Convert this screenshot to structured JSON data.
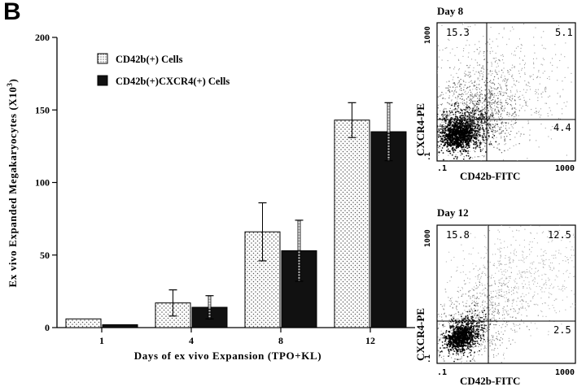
{
  "panel_letter": "B",
  "chart_data": [
    {
      "type": "bar",
      "title": "",
      "xlabel": "Days of ex vivo Expansion (TPO+KL)",
      "ylabel_main": "Ex vivo Expanded Megakaryocytes (X10",
      "ylabel_sup": "3",
      "ylabel_end": ")",
      "categories": [
        "1",
        "4",
        "8",
        "12"
      ],
      "ylim": [
        0,
        200
      ],
      "yticks": [
        0,
        50,
        100,
        150,
        200
      ],
      "legend_position": "top-left",
      "series": [
        {
          "name": "CD42b(+) Cells",
          "values": [
            6,
            17,
            66,
            143
          ],
          "errors": [
            0,
            9,
            20,
            12
          ],
          "color": "#ececec"
        },
        {
          "name": "CD42b(+)CXCR4(+) Cells",
          "values": [
            2,
            14,
            53,
            135
          ],
          "errors": [
            0,
            8,
            21,
            20
          ],
          "color": "#111111"
        }
      ]
    },
    {
      "type": "scatter",
      "title": "Day 8",
      "xlabel": "CD42b-FITC",
      "ylabel": "CXCR4-PE",
      "scale": "log",
      "xticks": [
        ".1",
        "1000"
      ],
      "yticks": [
        ".1",
        "1000"
      ],
      "quadrant_values": {
        "upper_left": "15.3",
        "upper_right": "5.1",
        "lower_right": "4.4"
      }
    },
    {
      "type": "scatter",
      "title": "Day 12",
      "xlabel": "CD42b-FITC",
      "ylabel": "CXCR4-PE",
      "scale": "log",
      "xticks": [
        ".1",
        "1000"
      ],
      "yticks": [
        ".1",
        "1000"
      ],
      "quadrant_values": {
        "upper_left": "15.8",
        "upper_right": "12.5",
        "lower_right": "2.5"
      }
    }
  ]
}
